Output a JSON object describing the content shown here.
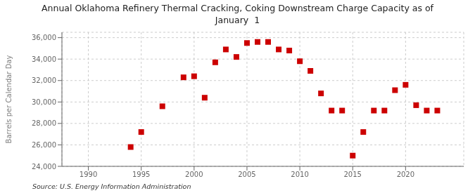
{
  "chart_data": {
    "type": "scatter",
    "title": "Annual Oklahoma Refinery Thermal Cracking, Coking Downstream Charge Capacity as of\nJanuary  1",
    "ylabel": "Barrels per Calendar Day",
    "source": "Source: U.S. Energy Information Administration",
    "x": [
      1994,
      1995,
      1997,
      1999,
      2000,
      2001,
      2002,
      2003,
      2004,
      2005,
      2006,
      2007,
      2008,
      2009,
      2010,
      2011,
      2012,
      2013,
      2014,
      2015,
      2016,
      2017,
      2018,
      2019,
      2020,
      2021,
      2022,
      2023
    ],
    "values": [
      25800,
      27200,
      29600,
      32300,
      32400,
      30400,
      33700,
      34900,
      34200,
      35500,
      35600,
      35600,
      34900,
      34800,
      33800,
      32900,
      30800,
      29200,
      29200,
      25000,
      27200,
      29200,
      29200,
      31100,
      31600,
      29700,
      29200,
      29200
    ],
    "color": "#cc0000",
    "marker": "square",
    "xlim": [
      1987.5,
      2025.5
    ],
    "ylim": [
      24000,
      36500
    ],
    "xticks": [
      1990,
      1995,
      2000,
      2005,
      2010,
      2015,
      2020
    ],
    "yticks": [
      {
        "value": 24000,
        "label": "24,000"
      },
      {
        "value": 26000,
        "label": "26,000"
      },
      {
        "value": 28000,
        "label": "28,000"
      },
      {
        "value": 30000,
        "label": "30,000"
      },
      {
        "value": 32000,
        "label": "32,000"
      },
      {
        "value": 34000,
        "label": "34,000"
      },
      {
        "value": 36000,
        "label": "36,000"
      }
    ],
    "grid": true
  }
}
